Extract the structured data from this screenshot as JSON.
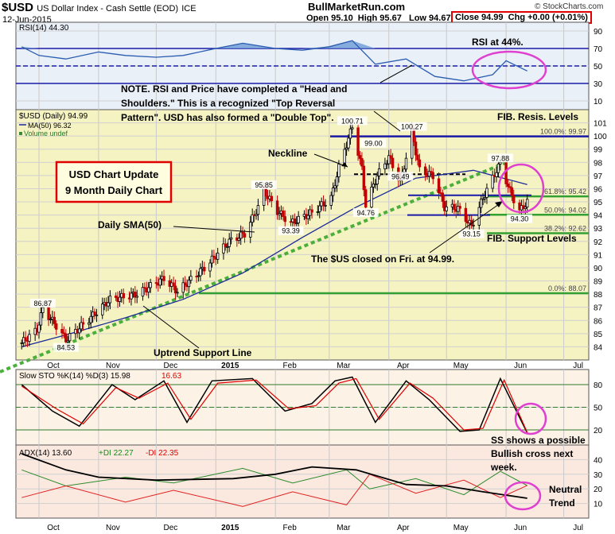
{
  "header": {
    "symbol": "$USD",
    "name": "US Dollar Index - Cash Settle (EOD)",
    "exchange": "ICE",
    "date": "12-Jun-2015",
    "brand": "BullMarketRun.com",
    "stockcharts": "© StockCharts.com",
    "ohlc": "Open 95.10  High 95.67   Low 94.67",
    "close_box": "Close 94.99  Chg +0.00 (+0.01%)"
  },
  "colors": {
    "price_bg": "#f6f3c2",
    "rsi_bg": "#eaf0f8",
    "sto_bg": "#fdf2e6",
    "adx_bg": "#fbe9e0",
    "blue": "#1a1aa8",
    "green": "#33a033",
    "pink": "#e040d0",
    "red_box": "#e00000"
  },
  "chart_data": [
    {
      "type": "line",
      "panel": "RSI",
      "legend": "RSI(14) 44.30",
      "ylim": [
        0,
        100
      ],
      "y_ticks": [
        10,
        30,
        50,
        70,
        90
      ],
      "reference_lines": [
        30,
        50,
        70
      ],
      "x": [
        "2014-09-22",
        "2014-10-01",
        "2014-10-15",
        "2014-11-01",
        "2014-11-15",
        "2014-12-01",
        "2014-12-15",
        "2015-01-01",
        "2015-01-15",
        "2015-02-01",
        "2015-02-15",
        "2015-03-01",
        "2015-03-13",
        "2015-03-25",
        "2015-04-10",
        "2015-04-25",
        "2015-05-10",
        "2015-05-25",
        "2015-06-01",
        "2015-06-12"
      ],
      "values": [
        72,
        62,
        58,
        66,
        62,
        60,
        62,
        70,
        76,
        70,
        68,
        72,
        79,
        52,
        58,
        38,
        33,
        40,
        56,
        44.3
      ],
      "annotation": "RSI at 44%."
    },
    {
      "type": "bar",
      "panel": "Price",
      "legend": [
        "$USD (Daily) 94.99",
        "MA(50) 96.32",
        "Volume undef"
      ],
      "ylim": [
        83,
        102
      ],
      "y_ticks": [
        84,
        85,
        86,
        87,
        88,
        89,
        90,
        91,
        92,
        93,
        94,
        95,
        96,
        97,
        98,
        99,
        100,
        101
      ],
      "x_ticks": [
        "Oct",
        "Nov",
        "Dec",
        "2015",
        "Feb",
        "Mar",
        "Apr",
        "May",
        "Jun",
        "Jul"
      ],
      "close_points": [
        [
          "2014-09-22",
          84.3
        ],
        [
          "2014-09-30",
          85.3
        ],
        [
          "2014-10-03",
          86.87
        ],
        [
          "2014-10-10",
          85.6
        ],
        [
          "2014-10-15",
          84.53
        ],
        [
          "2014-10-24",
          85.7
        ],
        [
          "2014-11-07",
          87.6
        ],
        [
          "2014-11-21",
          88.0
        ],
        [
          "2014-12-05",
          89.2
        ],
        [
          "2014-12-12",
          88.2
        ],
        [
          "2014-12-26",
          90.0
        ],
        [
          "2015-01-08",
          92.0
        ],
        [
          "2015-01-16",
          92.6
        ],
        [
          "2015-01-23",
          94.6
        ],
        [
          "2015-01-26",
          95.85
        ],
        [
          "2015-02-02",
          94.3
        ],
        [
          "2015-02-09",
          93.39
        ],
        [
          "2015-02-20",
          94.2
        ],
        [
          "2015-03-02",
          95.3
        ],
        [
          "2015-03-06",
          97.6
        ],
        [
          "2015-03-13",
          100.71
        ],
        [
          "2015-03-18",
          97.5
        ],
        [
          "2015-03-20",
          94.76
        ],
        [
          "2015-03-26",
          97.0
        ],
        [
          "2015-04-01",
          98.4
        ],
        [
          "2015-04-07",
          96.49
        ],
        [
          "2015-04-13",
          100.27
        ],
        [
          "2015-04-17",
          97.4
        ],
        [
          "2015-04-24",
          97.0
        ],
        [
          "2015-04-30",
          94.6
        ],
        [
          "2015-05-07",
          94.5
        ],
        [
          "2015-05-14",
          93.15
        ],
        [
          "2015-05-20",
          95.3
        ],
        [
          "2015-05-27",
          97.4
        ],
        [
          "2015-05-29",
          97.88
        ],
        [
          "2015-06-03",
          95.8
        ],
        [
          "2015-06-08",
          94.3
        ],
        [
          "2015-06-12",
          94.99
        ]
      ],
      "ma50_points": [
        [
          "2014-09-22",
          84.0
        ],
        [
          "2014-10-15",
          84.9
        ],
        [
          "2014-11-15",
          86.2
        ],
        [
          "2014-12-15",
          87.6
        ],
        [
          "2015-01-15",
          89.6
        ],
        [
          "2015-02-15",
          92.3
        ],
        [
          "2015-03-15",
          94.6
        ],
        [
          "2015-04-15",
          96.8
        ],
        [
          "2015-05-15",
          97.4
        ],
        [
          "2015-06-12",
          96.32
        ]
      ],
      "labels": [
        [
          "2014-10-03",
          86.87,
          "86.87"
        ],
        [
          "2014-10-15",
          84.53,
          "84.53"
        ],
        [
          "2015-01-26",
          95.85,
          "95.85"
        ],
        [
          "2015-02-09",
          93.39,
          "93.39"
        ],
        [
          "2015-03-13",
          100.71,
          "100.71"
        ],
        [
          "2015-03-20",
          94.76,
          "94.76"
        ],
        [
          "2015-03-24",
          99.0,
          "99.00"
        ],
        [
          "2015-04-13",
          100.27,
          "100.27"
        ],
        [
          "2015-04-07",
          96.49,
          "96.49"
        ],
        [
          "2015-05-14",
          93.15,
          "93.15"
        ],
        [
          "2015-05-29",
          97.88,
          "97.88"
        ],
        [
          "2015-06-08",
          94.3,
          "94.30"
        ]
      ],
      "fib_levels": [
        [
          "100.0%: 99.97",
          99.97
        ],
        [
          "61.8%: 95.42",
          95.42
        ],
        [
          "50.0%: 94.02",
          94.02
        ],
        [
          "38.2%: 92.62",
          92.62
        ],
        [
          "0.0%: 88.07",
          88.07
        ]
      ],
      "annotations": {
        "note": "NOTE. RSI and Price have completed a \"Head and Shoulders.\" This is a recognized \"Top Reversal Pattern\". USD has also formed a \"Double Top\".",
        "fib_resis": "FIB. Resis. Levels",
        "fib_support": "FIB. Support Levels",
        "neckline": "Neckline",
        "sma": "Daily SMA(50)",
        "closed": "The $US closed on Fri. at 94.99.",
        "uptrend": "Uptrend Support Line",
        "update_title": "USD Chart Update",
        "update_sub": "9 Month Daily Chart"
      }
    },
    {
      "type": "line",
      "panel": "Slow STO",
      "legend": [
        "Slow STO %K(14) %D(3) 15.98",
        "16.63"
      ],
      "ylim": [
        0,
        100
      ],
      "y_ticks": [
        20,
        50,
        80
      ],
      "k_values": [
        [
          "2014-09-22",
          80
        ],
        [
          "2014-10-08",
          45
        ],
        [
          "2014-10-22",
          25
        ],
        [
          "2014-11-08",
          80
        ],
        [
          "2014-11-20",
          60
        ],
        [
          "2014-12-05",
          85
        ],
        [
          "2014-12-17",
          30
        ],
        [
          "2014-12-30",
          85
        ],
        [
          "2015-01-20",
          88
        ],
        [
          "2015-02-06",
          45
        ],
        [
          "2015-02-20",
          55
        ],
        [
          "2015-03-04",
          85
        ],
        [
          "2015-03-13",
          90
        ],
        [
          "2015-03-25",
          30
        ],
        [
          "2015-04-10",
          85
        ],
        [
          "2015-04-22",
          60
        ],
        [
          "2015-05-08",
          18
        ],
        [
          "2015-05-18",
          20
        ],
        [
          "2015-05-29",
          88
        ],
        [
          "2015-06-12",
          15.98
        ]
      ],
      "d_values": [
        [
          "2014-09-22",
          78
        ],
        [
          "2014-10-10",
          48
        ],
        [
          "2014-10-24",
          28
        ],
        [
          "2014-11-10",
          76
        ],
        [
          "2014-11-22",
          62
        ],
        [
          "2014-12-07",
          82
        ],
        [
          "2014-12-19",
          34
        ],
        [
          "2015-01-02",
          82
        ],
        [
          "2015-01-22",
          86
        ],
        [
          "2015-02-08",
          48
        ],
        [
          "2015-02-22",
          52
        ],
        [
          "2015-03-06",
          82
        ],
        [
          "2015-03-15",
          88
        ],
        [
          "2015-03-27",
          34
        ],
        [
          "2015-04-12",
          82
        ],
        [
          "2015-04-24",
          62
        ],
        [
          "2015-05-10",
          20
        ],
        [
          "2015-05-20",
          22
        ],
        [
          "2015-05-31",
          86
        ],
        [
          "2015-06-12",
          16.63
        ]
      ],
      "annotation": [
        "SS shows a possible",
        "Bullish cross next",
        "week."
      ]
    },
    {
      "type": "line",
      "panel": "ADX",
      "legend": [
        "ADX(14) 13.60",
        "+DI 22.27",
        "-DI 22.35"
      ],
      "ylim": [
        0,
        50
      ],
      "y_ticks": [
        10,
        20,
        30,
        40
      ],
      "adx": [
        [
          "2014-09-22",
          44
        ],
        [
          "2014-10-15",
          33
        ],
        [
          "2014-11-01",
          28
        ],
        [
          "2014-12-01",
          26
        ],
        [
          "2015-01-10",
          27
        ],
        [
          "2015-02-01",
          30
        ],
        [
          "2015-02-20",
          35
        ],
        [
          "2015-03-15",
          33
        ],
        [
          "2015-04-10",
          23
        ],
        [
          "2015-05-01",
          22
        ],
        [
          "2015-05-20",
          18
        ],
        [
          "2015-06-12",
          13.6
        ]
      ],
      "plus_di": [
        [
          "2014-09-22",
          33
        ],
        [
          "2014-10-15",
          22
        ],
        [
          "2014-11-15",
          28
        ],
        [
          "2014-12-10",
          24
        ],
        [
          "2015-01-15",
          34
        ],
        [
          "2015-02-10",
          24
        ],
        [
          "2015-03-10",
          33
        ],
        [
          "2015-03-22",
          20
        ],
        [
          "2015-04-15",
          27
        ],
        [
          "2015-05-10",
          16
        ],
        [
          "2015-05-29",
          32
        ],
        [
          "2015-06-12",
          22.27
        ]
      ],
      "minus_di": [
        [
          "2014-09-22",
          14
        ],
        [
          "2014-10-15",
          22
        ],
        [
          "2014-11-15",
          11
        ],
        [
          "2014-12-10",
          19
        ],
        [
          "2015-01-15",
          8
        ],
        [
          "2015-02-10",
          18
        ],
        [
          "2015-03-10",
          9
        ],
        [
          "2015-03-22",
          30
        ],
        [
          "2015-04-15",
          17
        ],
        [
          "2015-05-10",
          26
        ],
        [
          "2015-05-29",
          14
        ],
        [
          "2015-06-12",
          22.35
        ]
      ],
      "annotation": [
        "Neutral",
        "Trend"
      ]
    }
  ]
}
